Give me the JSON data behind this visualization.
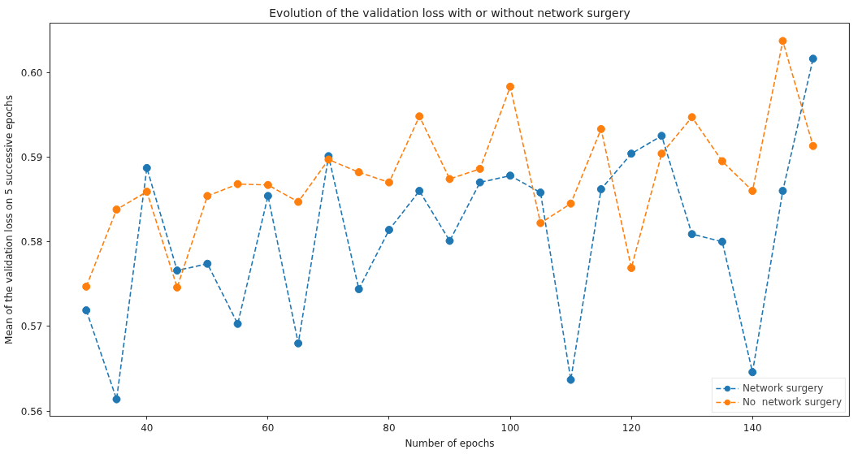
{
  "chart_data": {
    "type": "line",
    "title": "Evolution of the validation loss with or without network surgery",
    "xlabel": "Number of epochs",
    "ylabel": "Mean of the validation loss on 5 successive epochs",
    "x": [
      30,
      35,
      40,
      45,
      50,
      55,
      60,
      65,
      70,
      75,
      80,
      85,
      90,
      95,
      100,
      105,
      110,
      115,
      120,
      125,
      130,
      135,
      140,
      145,
      150
    ],
    "series": [
      {
        "name": "Network surgery",
        "color": "#1f77b4",
        "values": [
          0.5719,
          0.5614,
          0.5887,
          0.5766,
          0.5774,
          0.5703,
          0.5854,
          0.568,
          0.5901,
          0.5744,
          0.5814,
          0.586,
          0.5801,
          0.587,
          0.5878,
          0.5858,
          0.5637,
          0.5862,
          0.5904,
          0.5925,
          0.5809,
          0.58,
          0.5646,
          0.586,
          0.6016
        ]
      },
      {
        "name": "No  network surgery",
        "color": "#ff7f0e",
        "values": [
          0.5747,
          0.5838,
          0.5859,
          0.5746,
          0.5854,
          0.5868,
          0.5867,
          0.5847,
          0.5897,
          0.5882,
          0.587,
          0.5948,
          0.5874,
          0.5886,
          0.5983,
          0.5822,
          0.5845,
          0.5933,
          0.5769,
          0.5904,
          0.5947,
          0.5895,
          0.586,
          0.6037,
          0.5913
        ]
      }
    ],
    "xlim": [
      24,
      156
    ],
    "xticks": [
      40,
      60,
      80,
      100,
      120,
      140
    ],
    "ylim": [
      0.5594,
      0.6058
    ],
    "yticks": [
      0.56,
      0.57,
      0.58,
      0.59,
      {
        "value": 0.6,
        "label": "0.60"
      }
    ],
    "marker": "circle",
    "line_style": "dashed",
    "legend": "bottom right"
  }
}
